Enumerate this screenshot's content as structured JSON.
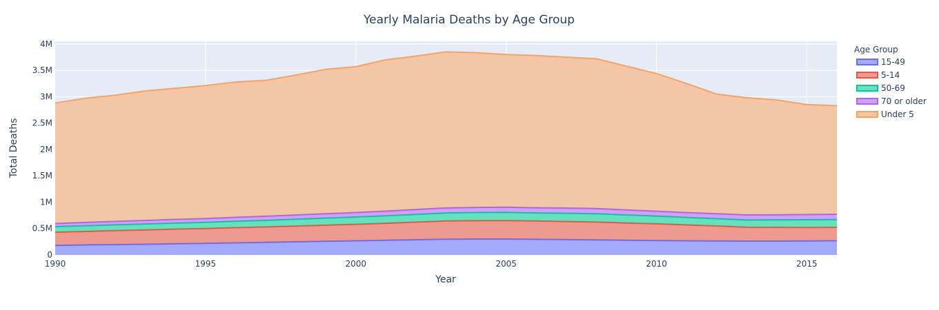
{
  "chart_data": {
    "type": "area",
    "stacked": true,
    "title": "Yearly Malaria Deaths by Age Group",
    "xlabel": "Year",
    "ylabel": "Total Deaths",
    "xlim": [
      1990,
      2016
    ],
    "ylim": [
      0,
      4050000
    ],
    "x_ticks": [
      1990,
      1995,
      2000,
      2005,
      2010,
      2015
    ],
    "y_ticks": [
      {
        "value": 0,
        "label": "0"
      },
      {
        "value": 500000,
        "label": "0.5M"
      },
      {
        "value": 1000000,
        "label": "1M"
      },
      {
        "value": 1500000,
        "label": "1.5M"
      },
      {
        "value": 2000000,
        "label": "2M"
      },
      {
        "value": 2500000,
        "label": "2.5M"
      },
      {
        "value": 3000000,
        "label": "3M"
      },
      {
        "value": 3500000,
        "label": "3.5M"
      },
      {
        "value": 4000000,
        "label": "4M"
      }
    ],
    "legend_title": "Age Group",
    "legend_position": "right",
    "grid": true,
    "background_color": "#E5ECF6",
    "x": [
      1990,
      1991,
      1992,
      1993,
      1994,
      1995,
      1996,
      1997,
      1998,
      1999,
      2000,
      2001,
      2002,
      2003,
      2004,
      2005,
      2006,
      2007,
      2008,
      2009,
      2010,
      2011,
      2012,
      2013,
      2014,
      2015,
      2016
    ],
    "series": [
      {
        "name": "15-49",
        "color": "#636EFA",
        "fill": "#A3A9FC",
        "values": [
          180000,
          190000,
          195000,
          202000,
          210000,
          218000,
          228000,
          238000,
          248000,
          258000,
          268000,
          278000,
          288000,
          298000,
          300000,
          300000,
          295000,
          290000,
          285000,
          278000,
          272000,
          268000,
          265000,
          262000,
          262000,
          265000,
          270000
        ]
      },
      {
        "name": "5-14",
        "color": "#EF553B",
        "fill": "#EE9A91",
        "values": [
          250000,
          255000,
          265000,
          272000,
          278000,
          282000,
          288000,
          292000,
          298000,
          306000,
          312000,
          322000,
          332000,
          345000,
          348000,
          350000,
          348000,
          342000,
          337000,
          327000,
          317000,
          300000,
          283000,
          262000,
          260000,
          255000,
          252000
        ]
      },
      {
        "name": "50-69",
        "color": "#00CC96",
        "fill": "#66E0BD",
        "values": [
          105000,
          108000,
          110000,
          112000,
          115000,
          118000,
          122000,
          125000,
          130000,
          134000,
          138000,
          142000,
          148000,
          152000,
          155000,
          156000,
          153000,
          157000,
          158000,
          153000,
          147000,
          142000,
          140000,
          138000,
          142000,
          147000,
          148000
        ]
      },
      {
        "name": "70 or older",
        "color": "#AB63FA",
        "fill": "#CDA1FC",
        "values": [
          60000,
          63000,
          65000,
          67000,
          70000,
          72000,
          74000,
          78000,
          80000,
          82000,
          85000,
          88000,
          92000,
          95000,
          97000,
          99000,
          97000,
          100000,
          98000,
          95000,
          92000,
          92000,
          93000,
          95000,
          96000,
          98000,
          100000
        ]
      },
      {
        "name": "Under 5",
        "color": "#FFA15A",
        "fill": "#F2C6A6",
        "values": [
          2285000,
          2354000,
          2395000,
          2457000,
          2487000,
          2520000,
          2568000,
          2577000,
          2654000,
          2740000,
          2767000,
          2870000,
          2910000,
          2960000,
          2935000,
          2895000,
          2887000,
          2861000,
          2842000,
          2727000,
          2612000,
          2448000,
          2269000,
          2223000,
          2180000,
          2085000,
          2060000
        ]
      }
    ]
  }
}
